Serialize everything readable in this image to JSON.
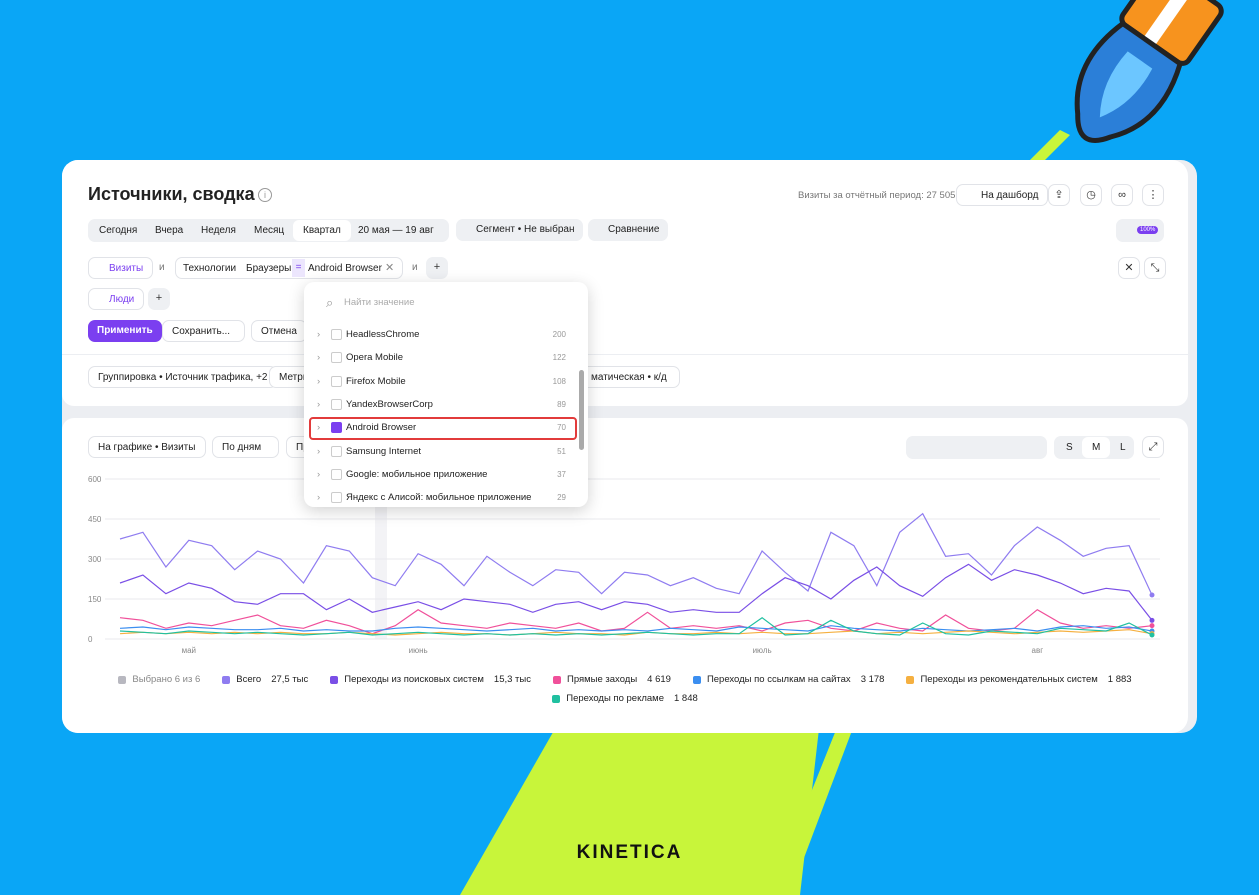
{
  "header": {
    "title": "Источники, сводка",
    "visits_label": "Визиты за отчётный период: 27 505",
    "dashboard": "На дашборд"
  },
  "toolbar": {
    "periods": [
      "Сегодня",
      "Вчера",
      "Неделя",
      "Месяц",
      "Квартал"
    ],
    "date_range": "20 мая — 19 авг",
    "segment": "Сегмент • Не выбран",
    "compare": "Сравнение",
    "badge": "100%"
  },
  "filters": {
    "metric": "Визиты",
    "and1": "и",
    "path": [
      "Технологии",
      "Браузеры"
    ],
    "eq": "=",
    "value": "Android Browser",
    "and2": "и",
    "people": "Люди",
    "apply": "Применить",
    "save": "Сохранить...",
    "cancel": "Отмена"
  },
  "grouping": {
    "group": "Группировка • Источник трафика, +2",
    "metrics": "Метри",
    "attribution": "матическая • к/д"
  },
  "chart_controls": {
    "on_chart": "На графике • Визиты",
    "by": "По дням",
    "third": "Пр",
    "sizes": [
      "S",
      "M",
      "L"
    ]
  },
  "dropdown": {
    "search": "Найти значение",
    "items": [
      {
        "name": "HeadlessChrome",
        "count": 200
      },
      {
        "name": "Opera Mobile",
        "count": 122
      },
      {
        "name": "Firefox Mobile",
        "count": 108
      },
      {
        "name": "YandexBrowserCorp",
        "count": 89
      },
      {
        "name": "Android Browser",
        "count": 70
      },
      {
        "name": "Samsung Internet",
        "count": 51
      },
      {
        "name": "Google: мобильное приложение",
        "count": 37
      },
      {
        "name": "Яндекс с Алисой: мобильное приложение",
        "count": 29
      }
    ]
  },
  "chart_data": {
    "type": "line",
    "legend_title": "Выбрано 6 из 6",
    "categories": [
      null,
      null,
      null,
      "май",
      null,
      null,
      null,
      null,
      null,
      null,
      null,
      null,
      null,
      "июнь",
      null,
      null,
      null,
      null,
      null,
      null,
      null,
      null,
      null,
      null,
      null,
      null,
      null,
      null,
      "июль",
      null,
      null,
      null,
      null,
      null,
      null,
      null,
      null,
      null,
      null,
      null,
      "авг",
      null,
      null,
      null,
      null,
      null
    ],
    "ylim": [
      0,
      600
    ],
    "yticks": [
      0,
      150,
      300,
      450,
      600
    ],
    "grid": true,
    "series": [
      {
        "name": "Всего",
        "total": "27,5 тыс",
        "color": "#8f7cf0",
        "values": [
          375,
          400,
          270,
          370,
          350,
          260,
          330,
          300,
          210,
          350,
          330,
          230,
          200,
          320,
          280,
          200,
          310,
          250,
          200,
          260,
          250,
          170,
          250,
          240,
          200,
          230,
          190,
          170,
          330,
          250,
          180,
          400,
          350,
          200,
          400,
          470,
          310,
          320,
          240,
          350,
          420,
          370,
          310,
          340,
          350,
          165
        ]
      },
      {
        "name": "Переходы из поисковых систем",
        "total": "15,3 тыс",
        "color": "#7a4fe6",
        "values": [
          210,
          240,
          170,
          210,
          190,
          140,
          130,
          170,
          170,
          110,
          150,
          100,
          120,
          140,
          110,
          150,
          140,
          130,
          100,
          130,
          140,
          110,
          140,
          130,
          100,
          110,
          100,
          100,
          170,
          230,
          200,
          150,
          220,
          270,
          200,
          160,
          230,
          280,
          220,
          260,
          240,
          210,
          170,
          190,
          180,
          70
        ]
      },
      {
        "name": "Прямые заходы",
        "total": "4 619",
        "color": "#f0509a",
        "values": [
          80,
          70,
          40,
          60,
          50,
          70,
          90,
          50,
          40,
          70,
          50,
          20,
          50,
          110,
          60,
          50,
          40,
          60,
          50,
          40,
          60,
          30,
          40,
          100,
          40,
          50,
          40,
          50,
          30,
          60,
          70,
          40,
          30,
          60,
          40,
          30,
          90,
          40,
          30,
          40,
          110,
          60,
          40,
          50,
          40,
          50
        ]
      },
      {
        "name": "Переходы по ссылкам на сайтах",
        "total": "3 178",
        "color": "#3b8ef0",
        "values": [
          40,
          45,
          35,
          45,
          40,
          35,
          35,
          40,
          30,
          35,
          30,
          30,
          40,
          45,
          40,
          35,
          30,
          35,
          40,
          30,
          35,
          30,
          35,
          30,
          40,
          35,
          30,
          45,
          40,
          35,
          30,
          50,
          40,
          35,
          30,
          40,
          35,
          30,
          35,
          40,
          30,
          45,
          50,
          40,
          45,
          30
        ]
      },
      {
        "name": "Переходы из рекомендательных систем",
        "total": "1 883",
        "color": "#f5b040",
        "values": [
          20,
          25,
          20,
          25,
          20,
          25,
          20,
          25,
          20,
          20,
          25,
          20,
          15,
          20,
          25,
          20,
          20,
          15,
          20,
          25,
          20,
          20,
          15,
          25,
          20,
          20,
          25,
          20,
          25,
          20,
          20,
          25,
          30,
          20,
          25,
          20,
          25,
          30,
          25,
          20,
          25,
          30,
          25,
          30,
          35,
          20
        ]
      },
      {
        "name": "Переходы по рекламе",
        "total": "1 848",
        "color": "#20c0a0",
        "values": [
          30,
          25,
          20,
          30,
          25,
          20,
          25,
          20,
          15,
          20,
          25,
          15,
          20,
          25,
          20,
          15,
          20,
          15,
          20,
          15,
          20,
          15,
          20,
          25,
          20,
          15,
          20,
          20,
          80,
          15,
          20,
          70,
          30,
          20,
          15,
          60,
          20,
          15,
          30,
          25,
          20,
          40,
          35,
          30,
          60,
          15
        ]
      }
    ]
  },
  "brand": "KINETICA"
}
